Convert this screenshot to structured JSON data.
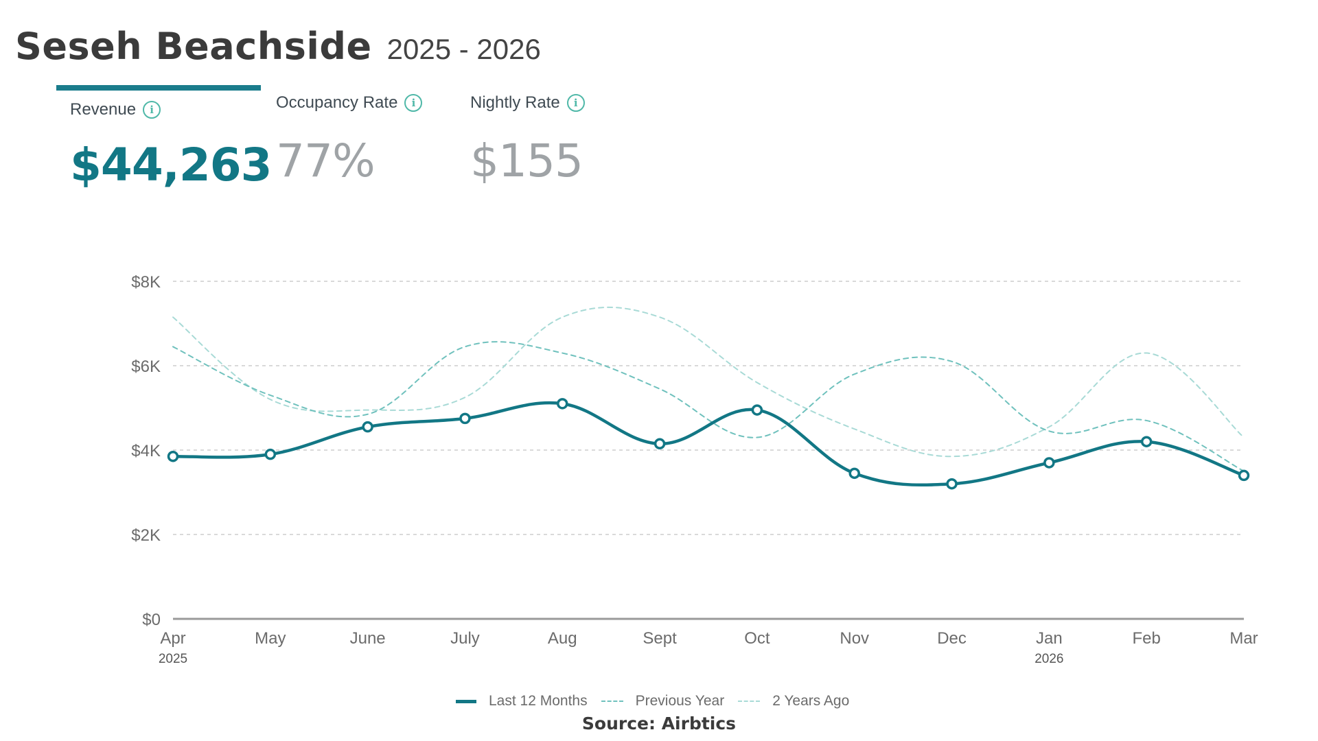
{
  "header": {
    "title": "Seseh Beachside",
    "years": "2025 - 2026"
  },
  "kpis": [
    {
      "label": "Revenue",
      "value": "$44,263",
      "active": true
    },
    {
      "label": "Occupancy Rate",
      "value": "77%",
      "active": false
    },
    {
      "label": "Nightly Rate",
      "value": "$155",
      "active": false
    }
  ],
  "info_icon": {
    "icon": "info-circle-icon",
    "glyph": "i"
  },
  "colors": {
    "primary": "#127785",
    "previous_year": "#6fc1bd",
    "two_years_ago": "#a8dad6",
    "grid": "#d9d9d9",
    "axis": "#9a9a9a"
  },
  "chart_data": {
    "type": "line",
    "categories": [
      "Apr",
      "May",
      "June",
      "July",
      "Aug",
      "Sept",
      "Oct",
      "Nov",
      "Dec",
      "Jan",
      "Feb",
      "Mar"
    ],
    "year_labels": [
      {
        "index": 0,
        "text": "2025"
      },
      {
        "index": 9,
        "text": "2026"
      }
    ],
    "yticks": [
      0,
      2000,
      4000,
      6000,
      8000
    ],
    "ytick_labels": [
      "$0",
      "$2K",
      "$4K",
      "$6K",
      "$8K"
    ],
    "ylim": [
      0,
      8000
    ],
    "grid": true,
    "legend_position": "bottom",
    "series": [
      {
        "name": "Last 12 Months",
        "style": "solid",
        "markers": true,
        "values": [
          3850,
          3900,
          4550,
          4750,
          5100,
          4150,
          4950,
          3450,
          3200,
          3700,
          4200,
          3400
        ]
      },
      {
        "name": "Previous Year",
        "style": "dashed",
        "values": [
          6450,
          5300,
          4850,
          6450,
          6300,
          5450,
          4300,
          5800,
          6100,
          4450,
          4700,
          3500
        ]
      },
      {
        "name": "2 Years Ago",
        "style": "dashed",
        "values": [
          7150,
          5200,
          4950,
          5250,
          7150,
          7150,
          5600,
          4500,
          3850,
          4550,
          6300,
          4300
        ]
      }
    ]
  },
  "source": "Source: Airbtics"
}
